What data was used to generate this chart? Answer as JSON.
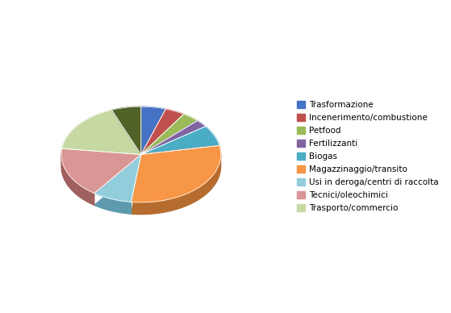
{
  "labels": [
    "Trasformazione",
    "Incenerimento/combustione",
    "Petfood",
    "Fertilizzanti",
    "Biogas",
    "Magazzinaggio/transito",
    "Usi in deroga/centri di raccolta",
    "Tecnici/oleochimici",
    "Trasporto/commercio",
    "Trasporto/commercio_dark"
  ],
  "values": [
    5,
    4,
    3.5,
    2.5,
    7,
    30,
    8,
    17,
    17,
    6
  ],
  "colors": [
    "#4472C4",
    "#C0504D",
    "#9BBB59",
    "#8064A2",
    "#4BACC6",
    "#F79646",
    "#92CDDC",
    "#D99694",
    "#C6D9A3",
    "#4F6228"
  ],
  "dark_colors": [
    "#2E4F8F",
    "#8B3733",
    "#6B8340",
    "#573F72",
    "#327A8C",
    "#B56C2E",
    "#5E9AAE",
    "#A06060",
    "#8EA87A",
    "#354519"
  ],
  "legend_labels": [
    "Trasformazione",
    "Incenerimento/combustione",
    "Petfood",
    "Fertilizzanti",
    "Biogas",
    "Magazzinaggio/transito",
    "Usi in deroga/centri di raccolta",
    "Tecnici/oleochimici",
    "Trasporto/commercio"
  ],
  "legend_colors": [
    "#4472C4",
    "#C0504D",
    "#9BBB59",
    "#8064A2",
    "#4BACC6",
    "#F79646",
    "#92CDDC",
    "#D99694",
    "#C6D9A3"
  ],
  "background_color": "#FFFFFF",
  "figsize": [
    5.59,
    3.88
  ]
}
